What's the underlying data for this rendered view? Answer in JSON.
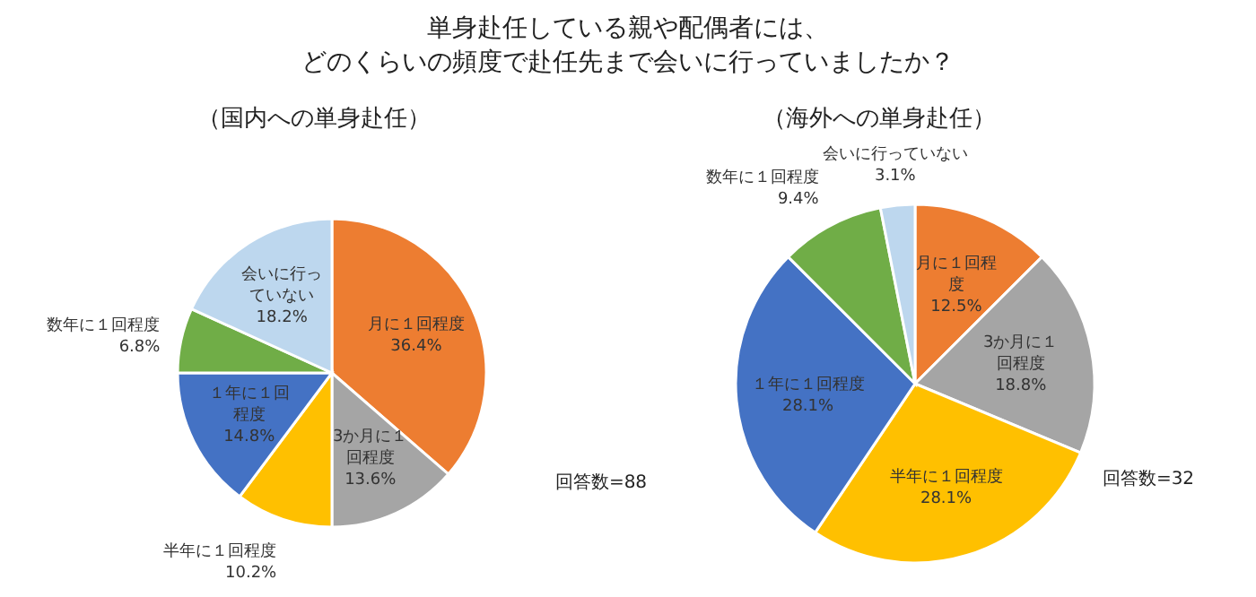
{
  "chart_data": [
    {
      "type": "pie",
      "title": "単身赴任している親や配偶者には、どのくらいの頻度で赴任先まで会いに行っていましたか？",
      "subtitle": "（国内への単身赴任）",
      "categories": [
        "月に１回程度",
        "3か月に１回程度",
        "半年に１回程度",
        "１年に１回程度",
        "数年に１回程度",
        "会いに行っていない"
      ],
      "values": [
        36.4,
        13.6,
        10.2,
        14.8,
        6.8,
        18.2
      ],
      "value_labels": [
        "36.4%",
        "13.6%",
        "10.2%",
        "14.8%",
        "6.8%",
        "18.2%"
      ],
      "colors": [
        "#ed7d31",
        "#a5a5a5",
        "#ffc000",
        "#4472c4",
        "#70ad47",
        "#bdd7ee"
      ],
      "annotations": [
        "回答数=88"
      ]
    },
    {
      "type": "pie",
      "subtitle": "（海外への単身赴任）",
      "categories": [
        "月に１回程度",
        "3か月に１回程度",
        "半年に１回程度",
        "１年に１回程度",
        "数年に１回程度",
        "会いに行っていない"
      ],
      "values": [
        12.5,
        18.8,
        28.1,
        28.1,
        9.4,
        3.1
      ],
      "value_labels": [
        "12.5%",
        "18.8%",
        "28.1%",
        "28.1%",
        "9.4%",
        "3.1%"
      ],
      "colors": [
        "#ed7d31",
        "#a5a5a5",
        "#ffc000",
        "#4472c4",
        "#70ad47",
        "#bdd7ee"
      ],
      "annotations": [
        "回答数=32"
      ]
    }
  ]
}
